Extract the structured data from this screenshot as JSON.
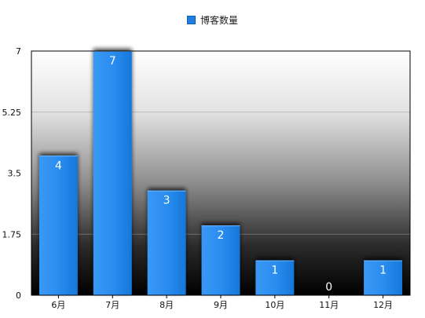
{
  "chart_data": {
    "type": "bar",
    "categories": [
      "6月",
      "7月",
      "8月",
      "9月",
      "10月",
      "11月",
      "12月"
    ],
    "series": [
      {
        "name": "博客数量",
        "values": [
          4,
          7,
          3,
          2,
          1,
          0,
          1
        ]
      }
    ],
    "yticks": [
      "0",
      "1.75",
      "3.5",
      "5.25",
      "7"
    ],
    "ylim": [
      0,
      7
    ],
    "legend_position": "top-center",
    "grid": true,
    "colors": {
      "bar": "#1f7fe0",
      "bar_light": "#46a2ff",
      "bar_dark": "#0a63c9",
      "background_top": "#ffffff",
      "background_bottom": "#000000"
    }
  }
}
